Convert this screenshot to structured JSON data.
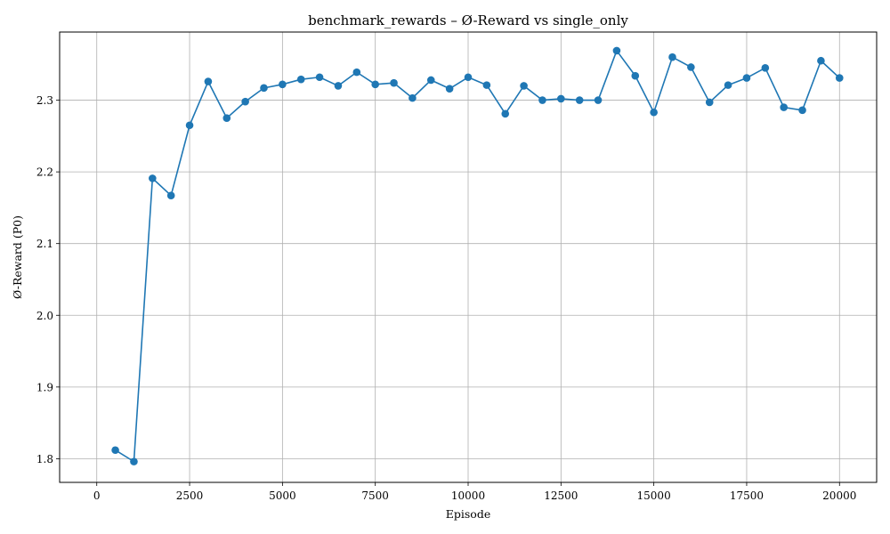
{
  "chart_data": {
    "type": "line",
    "title": "benchmark_rewards – Ø-Reward vs single_only",
    "xlabel": "Episode",
    "ylabel": "Ø-Reward (P0)",
    "xlim": [
      -1000,
      21000
    ],
    "ylim": [
      1.767,
      2.395
    ],
    "xticks": [
      0,
      2500,
      5000,
      7500,
      10000,
      12500,
      15000,
      17500,
      20000
    ],
    "yticks": [
      1.8,
      1.9,
      2.0,
      2.1,
      2.2,
      2.3
    ],
    "xtick_labels": [
      "0",
      "2500",
      "5000",
      "7500",
      "10000",
      "12500",
      "15000",
      "17500",
      "20000"
    ],
    "ytick_labels": [
      "1.8",
      "1.9",
      "2.0",
      "2.1",
      "2.2",
      "2.3"
    ],
    "grid": true,
    "color": "#1f77b4",
    "marker": "circle",
    "series": [
      {
        "x": [
          500,
          1000,
          1500,
          2000,
          2500,
          3000,
          3500,
          4000,
          4500,
          5000,
          5500,
          6000,
          6500,
          7000,
          7500,
          8000,
          8500,
          9000,
          9500,
          10000,
          10500,
          11000,
          11500,
          12000,
          12500,
          13000,
          13500,
          14000,
          14500,
          15000,
          15500,
          16000,
          16500,
          17000,
          17500,
          18000,
          18500,
          19000,
          19500,
          20000
        ],
        "values": [
          1.812,
          1.796,
          2.191,
          2.167,
          2.265,
          2.326,
          2.275,
          2.298,
          2.317,
          2.322,
          2.329,
          2.332,
          2.32,
          2.339,
          2.322,
          2.324,
          2.303,
          2.328,
          2.316,
          2.332,
          2.321,
          2.281,
          2.32,
          2.3,
          2.302,
          2.3,
          2.3,
          2.369,
          2.334,
          2.283,
          2.36,
          2.346,
          2.297,
          2.321,
          2.331,
          2.345,
          2.29,
          2.286,
          2.355,
          2.331
        ]
      }
    ]
  }
}
